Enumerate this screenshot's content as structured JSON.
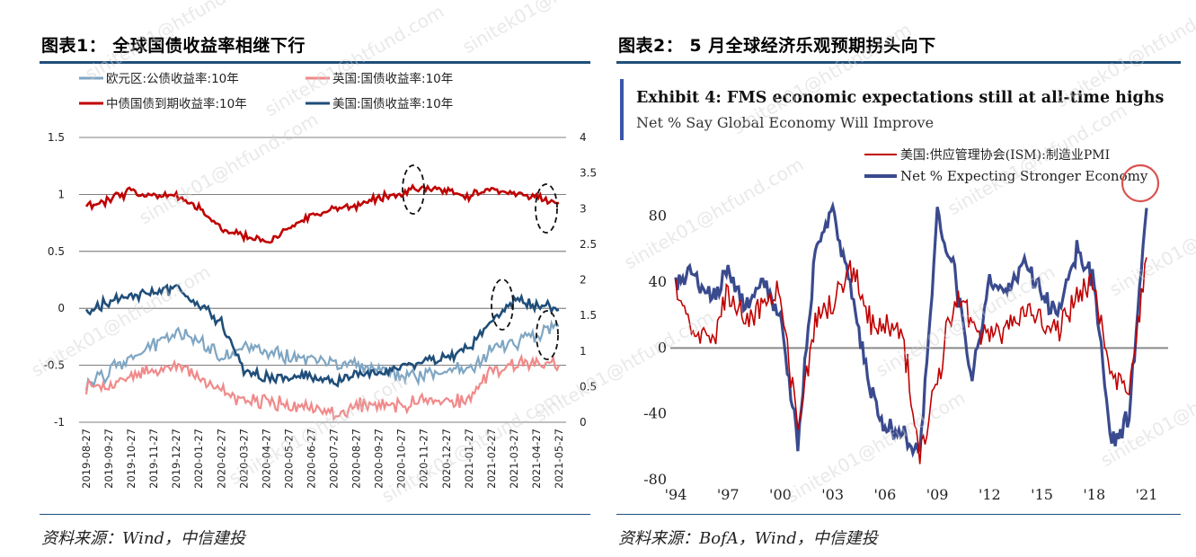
{
  "left_panel": {
    "title": "图表1：  全球国债收益率相继下行",
    "source": "资料来源：Wind，中信建投"
  },
  "right_panel": {
    "title": "图表2：  5 月全球经济乐观预期拐头向下",
    "source": "资料来源：BofA，Wind，中信建投"
  },
  "watermark": "sinitek01@htfund.com",
  "chart_data": [
    {
      "type": "line",
      "title": "",
      "left_axis": {
        "ylim": [
          -1,
          1.5
        ],
        "ticks": [
          "1.5",
          "1",
          "0.5",
          "0",
          "-0.5",
          "-1"
        ]
      },
      "right_axis": {
        "ylim": [
          0,
          4
        ],
        "ticks": [
          "4",
          "3.5",
          "3",
          "2.5",
          "2",
          "1.5",
          "1",
          "0.5",
          "0"
        ]
      },
      "categories": [
        "2019-08-27",
        "2019-09-27",
        "2019-10-27",
        "2019-11-27",
        "2019-12-27",
        "2020-01-27",
        "2020-02-27",
        "2020-03-27",
        "2020-04-27",
        "2020-05-27",
        "2020-06-27",
        "2020-07-27",
        "2020-08-27",
        "2020-09-27",
        "2020-10-27",
        "2020-11-27",
        "2020-12-27",
        "2021-01-27",
        "2021-02-27",
        "2021-03-27",
        "2021-04-27",
        "2021-05-27"
      ],
      "legend": [
        "欧元区:公债收益率:10年",
        "英国:国债收益率:10年",
        "中债国债到期收益率:10年",
        "美国:国债收益率:10年"
      ],
      "series": [
        {
          "name": "欧元区:公债收益率:10年",
          "axis": "left",
          "color": "#7fa6c3",
          "values": [
            -0.68,
            -0.55,
            -0.42,
            -0.32,
            -0.22,
            -0.28,
            -0.42,
            -0.35,
            -0.38,
            -0.42,
            -0.45,
            -0.48,
            -0.5,
            -0.53,
            -0.6,
            -0.58,
            -0.55,
            -0.55,
            -0.35,
            -0.3,
            -0.22,
            -0.15
          ]
        },
        {
          "name": "英国:国债收益率:10年",
          "axis": "right",
          "color": "#f08a8a",
          "values": [
            0.48,
            0.5,
            0.68,
            0.73,
            0.79,
            0.62,
            0.42,
            0.32,
            0.3,
            0.22,
            0.2,
            0.12,
            0.25,
            0.25,
            0.25,
            0.3,
            0.28,
            0.3,
            0.72,
            0.82,
            0.82,
            0.8
          ]
        },
        {
          "name": "中债国债到期收益率:10年",
          "axis": "right",
          "color": "#c00000",
          "values": [
            3.05,
            3.12,
            3.24,
            3.18,
            3.18,
            3.02,
            2.72,
            2.62,
            2.52,
            2.72,
            2.88,
            2.98,
            3.05,
            3.15,
            3.22,
            3.3,
            3.25,
            3.17,
            3.27,
            3.22,
            3.17,
            3.08
          ]
        },
        {
          "name": "美国:国债收益率:10年",
          "axis": "right",
          "color": "#1f4e79",
          "values": [
            1.5,
            1.7,
            1.78,
            1.8,
            1.9,
            1.65,
            1.4,
            0.7,
            0.62,
            0.65,
            0.65,
            0.55,
            0.7,
            0.68,
            0.8,
            0.85,
            0.92,
            1.05,
            1.4,
            1.7,
            1.65,
            1.58
          ]
        }
      ],
      "annotations": [
        "dashed ellipse around 中债 Nov 2020 peak",
        "dashed ellipse around 中债 May 2021",
        "dashed ellipse around 美国 Mar 2021 peak",
        "dashed ellipse around 欧元区 May 2021"
      ]
    },
    {
      "type": "line",
      "title": "Exhibit 4: FMS economic expectations still at all-time highs",
      "subtitle": "Net % Say Global Economy Will Improve",
      "ylim": [
        -80,
        100
      ],
      "y_ticks": [
        "80",
        "40",
        "0",
        "-40",
        "-80"
      ],
      "x_ticks": [
        "'94",
        "'97",
        "'00",
        "'03",
        "'06",
        "'09",
        "'12",
        "'15",
        "'18",
        "'21"
      ],
      "x": [
        1994,
        1995,
        1996,
        1997,
        1998,
        1999,
        2000,
        2001,
        2002,
        2003,
        2004,
        2005,
        2006,
        2007,
        2008,
        2009,
        2010,
        2011,
        2012,
        2013,
        2014,
        2015,
        2016,
        2017,
        2018,
        2019,
        2020,
        2021
      ],
      "legend": [
        "美国:供应管理协会(ISM):制造业PMI",
        "Net % Expecting Stronger Economy"
      ],
      "series": [
        {
          "name": "美国:供应管理协会(ISM):制造业PMI",
          "color": "#c00000",
          "values": [
            35,
            10,
            0,
            35,
            15,
            28,
            35,
            -50,
            18,
            30,
            50,
            20,
            12,
            8,
            -65,
            -20,
            30,
            20,
            5,
            12,
            25,
            15,
            10,
            32,
            35,
            -15,
            -25,
            55
          ]
        },
        {
          "name": "Net % Expecting Stronger Economy",
          "color": "#3a4a8e",
          "values": [
            40,
            45,
            30,
            45,
            25,
            40,
            20,
            -60,
            60,
            85,
            40,
            -20,
            -50,
            -50,
            -65,
            80,
            45,
            -20,
            40,
            35,
            55,
            30,
            25,
            60,
            40,
            -60,
            -40,
            85
          ]
        }
      ],
      "annotations": [
        "red circle around latest 2021 peak"
      ]
    }
  ]
}
